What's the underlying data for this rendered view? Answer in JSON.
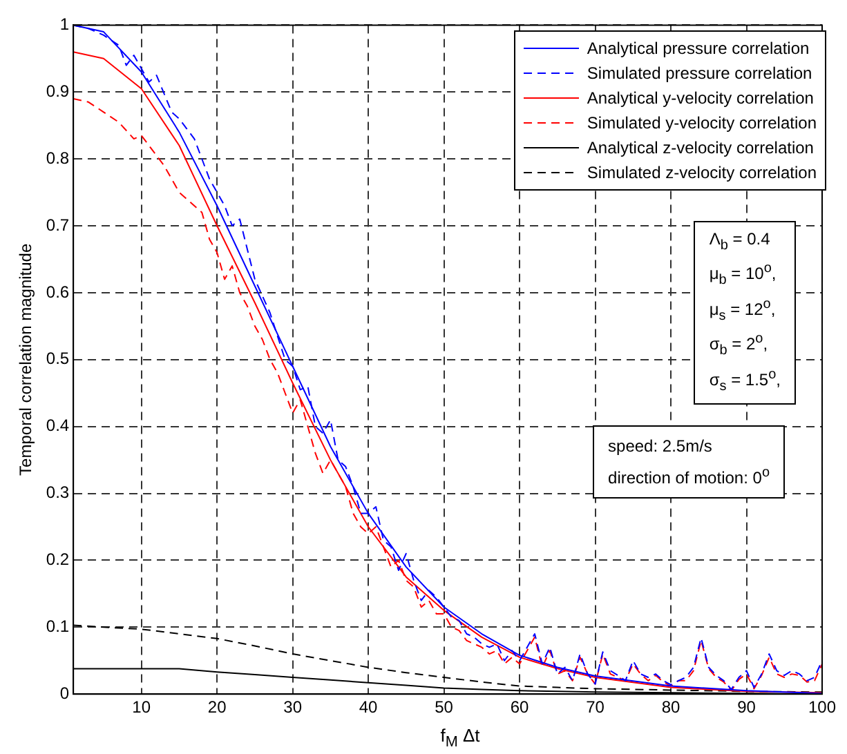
{
  "chart_data": {
    "type": "line",
    "xlabel": "f$_{M}$ Δt",
    "ylabel": "Temporal correlation magnitude",
    "x": [
      1,
      5,
      10,
      15,
      20,
      25,
      30,
      35,
      40,
      45,
      50,
      55,
      60,
      65,
      70,
      80,
      90,
      100
    ],
    "xlim": [
      1,
      100
    ],
    "xticks": [
      10,
      20,
      30,
      40,
      50,
      60,
      70,
      80,
      90,
      100
    ],
    "ylim": [
      0,
      1
    ],
    "yticks": [
      0,
      0.1,
      0.2,
      0.3,
      0.4,
      0.5,
      0.6,
      0.7,
      0.8,
      0.9,
      1
    ],
    "grid": true,
    "legend": "top right",
    "annotations": [
      "Λ$_{b}$ = 0.4\nμ$_{b}$ = 10$^{o}$,\nμ$_{s}$ = 12$^{o}$,\nσ$_{b}$ = 2$^{o}$,\nσ$_{s}$ = 1.5$^{o}$,",
      "speed: 2.5m/s\ndirection of motion: 0$^{o}$"
    ],
    "series": [
      {
        "name": "Analytical pressure correlation",
        "color": "#0000ff",
        "line_style": "solid",
        "values": [
          1.0,
          0.99,
          0.93,
          0.84,
          0.73,
          0.61,
          0.49,
          0.37,
          0.27,
          0.19,
          0.13,
          0.09,
          0.058,
          0.04,
          0.027,
          0.012,
          0.005,
          0.001
        ]
      },
      {
        "name": "Simulated pressure correlation",
        "color": "#0000ff",
        "line_style": "dashed",
        "x": [
          1,
          3,
          5,
          7,
          8,
          9,
          11,
          12,
          14,
          15,
          16,
          17,
          19,
          21,
          22,
          23,
          25,
          27,
          29,
          30,
          31,
          32,
          33,
          34,
          35,
          36,
          37,
          38,
          39,
          40,
          41,
          42,
          43,
          44,
          45,
          46,
          47,
          48,
          49,
          50,
          51,
          52,
          53,
          54,
          55,
          56,
          57,
          58,
          59,
          60,
          61,
          62,
          63,
          64,
          65,
          66,
          67,
          68,
          69,
          70,
          71,
          72,
          73,
          74,
          75,
          76,
          77,
          78,
          79,
          80,
          81,
          82,
          83,
          84,
          85,
          86,
          87,
          88,
          89,
          90,
          91,
          92,
          93,
          94,
          95,
          96,
          97,
          98,
          99,
          100
        ],
        "values": [
          1.0,
          0.995,
          0.985,
          0.97,
          0.94,
          0.955,
          0.915,
          0.925,
          0.87,
          0.86,
          0.845,
          0.83,
          0.77,
          0.73,
          0.7,
          0.71,
          0.62,
          0.57,
          0.5,
          0.49,
          0.455,
          0.46,
          0.4,
          0.39,
          0.41,
          0.35,
          0.34,
          0.31,
          0.27,
          0.27,
          0.28,
          0.23,
          0.22,
          0.185,
          0.21,
          0.17,
          0.14,
          0.155,
          0.145,
          0.13,
          0.115,
          0.11,
          0.09,
          0.085,
          0.075,
          0.07,
          0.075,
          0.05,
          0.065,
          0.05,
          0.07,
          0.09,
          0.045,
          0.07,
          0.03,
          0.04,
          0.02,
          0.06,
          0.03,
          0.015,
          0.063,
          0.035,
          0.028,
          0.02,
          0.05,
          0.03,
          0.025,
          0.03,
          0.02,
          0.014,
          0.02,
          0.025,
          0.04,
          0.084,
          0.04,
          0.028,
          0.02,
          0.007,
          0.025,
          0.035,
          0.01,
          0.03,
          0.06,
          0.035,
          0.028,
          0.035,
          0.03,
          0.02,
          0.025,
          0.05
        ]
      },
      {
        "name": "Analytical y-velocity correlation",
        "color": "#ff0000",
        "line_style": "solid",
        "values": [
          0.96,
          0.95,
          0.905,
          0.82,
          0.7,
          0.585,
          0.465,
          0.35,
          0.25,
          0.175,
          0.125,
          0.085,
          0.055,
          0.038,
          0.025,
          0.01,
          0.004,
          0.002
        ]
      },
      {
        "name": "Simulated y-velocity correlation",
        "color": "#ff0000",
        "line_style": "dashed",
        "x": [
          1,
          3,
          5,
          7,
          9,
          10,
          11,
          13,
          15,
          16,
          18,
          19,
          20,
          21,
          22,
          23,
          24,
          25,
          26,
          27,
          28,
          29,
          30,
          31,
          32,
          33,
          34,
          35,
          36,
          37,
          38,
          39,
          40,
          41,
          42,
          43,
          44,
          45,
          46,
          47,
          48,
          49,
          50,
          51,
          52,
          53,
          54,
          55,
          56,
          57,
          58,
          59,
          60,
          61,
          62,
          63,
          64,
          65,
          66,
          67,
          68,
          69,
          70,
          71,
          72,
          73,
          74,
          75,
          76,
          77,
          78,
          79,
          80,
          81,
          82,
          83,
          84,
          85,
          86,
          87,
          88,
          89,
          90,
          91,
          92,
          93,
          94,
          95,
          96,
          97,
          98,
          99,
          100
        ],
        "values": [
          0.89,
          0.885,
          0.87,
          0.855,
          0.83,
          0.835,
          0.82,
          0.79,
          0.75,
          0.74,
          0.72,
          0.68,
          0.66,
          0.62,
          0.64,
          0.6,
          0.58,
          0.55,
          0.53,
          0.5,
          0.48,
          0.45,
          0.42,
          0.44,
          0.4,
          0.36,
          0.33,
          0.35,
          0.33,
          0.31,
          0.27,
          0.25,
          0.24,
          0.25,
          0.22,
          0.19,
          0.2,
          0.17,
          0.16,
          0.13,
          0.14,
          0.12,
          0.12,
          0.1,
          0.095,
          0.08,
          0.075,
          0.07,
          0.06,
          0.065,
          0.045,
          0.055,
          0.045,
          0.065,
          0.085,
          0.04,
          0.065,
          0.03,
          0.035,
          0.02,
          0.055,
          0.03,
          0.015,
          0.06,
          0.03,
          0.025,
          0.02,
          0.045,
          0.03,
          0.02,
          0.028,
          0.018,
          0.012,
          0.02,
          0.02,
          0.035,
          0.08,
          0.038,
          0.025,
          0.018,
          0.005,
          0.022,
          0.03,
          0.008,
          0.028,
          0.055,
          0.03,
          0.025,
          0.03,
          0.028,
          0.018,
          0.02,
          0.045
        ]
      },
      {
        "name": "Analytical z-velocity correlation",
        "color": "#000000",
        "line_style": "solid",
        "values": [
          0.038,
          0.038,
          0.038,
          0.038,
          0.033,
          0.029,
          0.025,
          0.021,
          0.017,
          0.013,
          0.009,
          0.007,
          0.005,
          0.004,
          0.003,
          0.002,
          0.001,
          0.0
        ]
      },
      {
        "name": "Simulated z-velocity correlation",
        "color": "#000000",
        "line_style": "dashed",
        "values": [
          0.103,
          0.1,
          0.097,
          0.09,
          0.083,
          0.072,
          0.06,
          0.05,
          0.04,
          0.032,
          0.025,
          0.018,
          0.012,
          0.01,
          0.008,
          0.006,
          0.004,
          0.003
        ]
      }
    ]
  }
}
